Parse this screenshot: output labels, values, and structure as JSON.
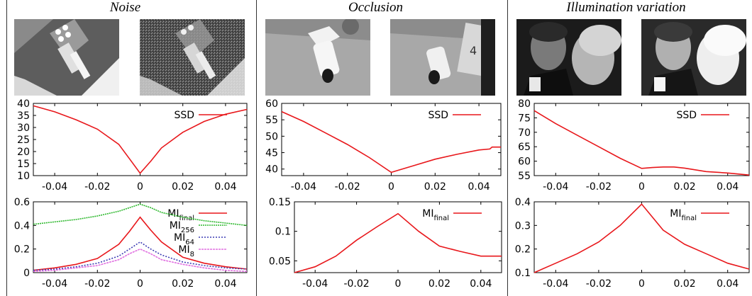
{
  "panels": [
    {
      "title": "Noise"
    },
    {
      "title": "Occlusion"
    },
    {
      "title": "Illumination variation"
    }
  ],
  "chart_data": [
    {
      "type": "line",
      "id": "noise-ssd",
      "x": [
        -0.05,
        -0.04,
        -0.03,
        -0.02,
        -0.01,
        -0.005,
        0,
        0.005,
        0.01,
        0.02,
        0.03,
        0.04,
        0.05
      ],
      "series": [
        {
          "name": "SSD",
          "color": "#e8171b",
          "values": [
            39,
            36.5,
            33.2,
            29.3,
            23,
            17,
            11,
            16,
            21.5,
            28,
            32.5,
            35.5,
            37.5
          ]
        }
      ],
      "xlim": [
        -0.05,
        0.05
      ],
      "ylim": [
        10,
        40
      ],
      "xticks": [
        "-0.04",
        "-0.02",
        "0",
        "0.02",
        "0.04"
      ],
      "yticks": [
        "10",
        "15",
        "20",
        "25",
        "30",
        "35",
        "40"
      ],
      "legend": "top-right"
    },
    {
      "type": "line",
      "id": "noise-mi",
      "x": [
        -0.05,
        -0.04,
        -0.03,
        -0.02,
        -0.01,
        -0.005,
        0,
        0.005,
        0.01,
        0.02,
        0.03,
        0.04,
        0.05
      ],
      "series": [
        {
          "name": "MI",
          "sub": "final",
          "color": "#e8171b",
          "values": [
            0.02,
            0.04,
            0.07,
            0.12,
            0.24,
            0.35,
            0.47,
            0.36,
            0.26,
            0.13,
            0.08,
            0.05,
            0.03
          ]
        },
        {
          "name": "MI",
          "sub": "256",
          "color": "#2eb82e",
          "values": [
            0.41,
            0.43,
            0.45,
            0.48,
            0.52,
            0.55,
            0.58,
            0.55,
            0.51,
            0.47,
            0.44,
            0.42,
            0.4
          ]
        },
        {
          "name": "MI",
          "sub": "64",
          "color": "#3b3bb3",
          "values": [
            0.02,
            0.03,
            0.05,
            0.08,
            0.14,
            0.2,
            0.26,
            0.2,
            0.15,
            0.09,
            0.06,
            0.04,
            0.03
          ]
        },
        {
          "name": "MI",
          "sub": "8",
          "color": "#e070e0",
          "values": [
            0.01,
            0.02,
            0.04,
            0.06,
            0.11,
            0.16,
            0.2,
            0.16,
            0.11,
            0.07,
            0.04,
            0.02,
            0.01
          ]
        }
      ],
      "xlim": [
        -0.05,
        0.05
      ],
      "ylim": [
        0,
        0.6
      ],
      "xticks": [
        "-0.04",
        "-0.02",
        "0",
        "0.02",
        "0.04"
      ],
      "yticks": [
        "0",
        "0.2",
        "0.4",
        "0.6"
      ],
      "legend": "top-right"
    },
    {
      "type": "line",
      "id": "occlusion-ssd",
      "x": [
        -0.05,
        -0.04,
        -0.03,
        -0.02,
        -0.01,
        0,
        0.01,
        0.02,
        0.03,
        0.04,
        0.045,
        0.046,
        0.05
      ],
      "series": [
        {
          "name": "SSD",
          "color": "#e8171b",
          "values": [
            57.5,
            54.5,
            51,
            47.5,
            43.5,
            39,
            41,
            43,
            44.5,
            45.8,
            46.1,
            46.7,
            46.7
          ]
        }
      ],
      "xlim": [
        -0.05,
        0.05
      ],
      "ylim": [
        38,
        60
      ],
      "xticks": [
        "-0.04",
        "-0.02",
        "0",
        "0.02",
        "0.04"
      ],
      "yticks": [
        "40",
        "45",
        "50",
        "55",
        "60"
      ],
      "legend": "top-right"
    },
    {
      "type": "line",
      "id": "occlusion-mi",
      "x": [
        -0.05,
        -0.04,
        -0.03,
        -0.02,
        -0.01,
        0,
        0.01,
        0.02,
        0.03,
        0.04,
        0.05
      ],
      "series": [
        {
          "name": "MI",
          "sub": "final",
          "color": "#e8171b",
          "values": [
            0.03,
            0.04,
            0.058,
            0.085,
            0.108,
            0.13,
            0.1,
            0.075,
            0.066,
            0.058,
            0.058
          ]
        }
      ],
      "xlim": [
        -0.05,
        0.05
      ],
      "ylim": [
        0.03,
        0.15
      ],
      "xticks": [
        "-0.04",
        "-0.02",
        "0",
        "0.02",
        "0.04"
      ],
      "yticks": [
        "0.05",
        "0.1",
        "0.15"
      ],
      "legend": "top-right"
    },
    {
      "type": "line",
      "id": "illumination-ssd",
      "x": [
        -0.05,
        -0.04,
        -0.03,
        -0.02,
        -0.01,
        0,
        0.005,
        0.01,
        0.015,
        0.02,
        0.03,
        0.04,
        0.05
      ],
      "series": [
        {
          "name": "SSD",
          "color": "#e8171b",
          "values": [
            77.5,
            73,
            69,
            65,
            61,
            57.5,
            57.8,
            58,
            58,
            57.6,
            56.4,
            55.9,
            55.2
          ]
        }
      ],
      "xlim": [
        -0.05,
        0.05
      ],
      "ylim": [
        55,
        80
      ],
      "xticks": [
        "-0.04",
        "-0.02",
        "0",
        "0.02",
        "0.04"
      ],
      "yticks": [
        "55",
        "60",
        "65",
        "70",
        "75",
        "80"
      ],
      "legend": "top-right"
    },
    {
      "type": "line",
      "id": "illumination-mi",
      "x": [
        -0.05,
        -0.04,
        -0.03,
        -0.02,
        -0.01,
        0,
        0.01,
        0.02,
        0.03,
        0.04,
        0.05
      ],
      "series": [
        {
          "name": "MI",
          "sub": "final",
          "color": "#e8171b",
          "values": [
            0.1,
            0.14,
            0.18,
            0.23,
            0.3,
            0.39,
            0.28,
            0.22,
            0.18,
            0.14,
            0.115
          ]
        }
      ],
      "xlim": [
        -0.05,
        0.05
      ],
      "ylim": [
        0.1,
        0.4
      ],
      "xticks": [
        "-0.04",
        "-0.02",
        "0",
        "0.02",
        "0.04"
      ],
      "yticks": [
        "0.1",
        "0.2",
        "0.3",
        "0.4"
      ],
      "legend": "top-right"
    }
  ]
}
